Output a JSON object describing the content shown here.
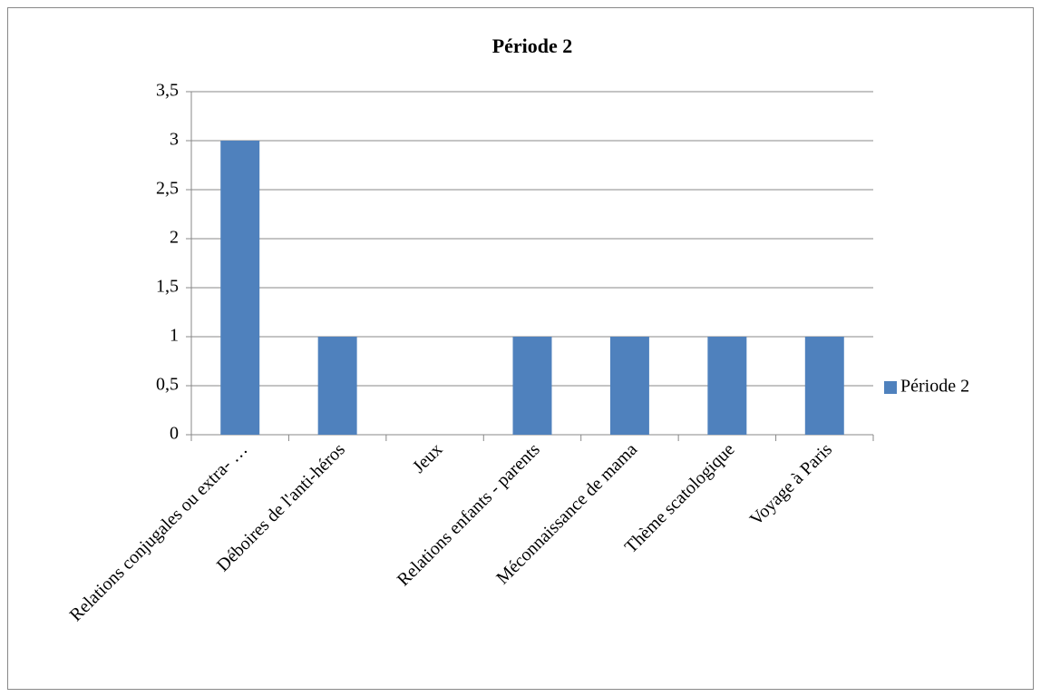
{
  "chart_data": {
    "type": "bar",
    "title": "Période 2",
    "categories": [
      "Relations conjugales ou extra- …",
      "Déboires de l'anti-héros",
      "Jeux",
      "Relations enfants - parents",
      "Méconnaissance de mama",
      "Thème scatologique",
      "Voyage à Paris"
    ],
    "series": [
      {
        "name": "Période 2",
        "color": "#4f81bd",
        "values": [
          3,
          1,
          0,
          1,
          1,
          1,
          1
        ]
      }
    ],
    "ylim": [
      0,
      3.5
    ],
    "yticks": [
      0,
      {
        "value": 0.5,
        "label": "0,5"
      },
      1,
      {
        "value": 1.5,
        "label": "1,5"
      },
      2,
      {
        "value": 2.5,
        "label": "2,5"
      },
      3,
      {
        "value": 3.5,
        "label": "3,5"
      }
    ],
    "grid": true,
    "legend": "right"
  }
}
